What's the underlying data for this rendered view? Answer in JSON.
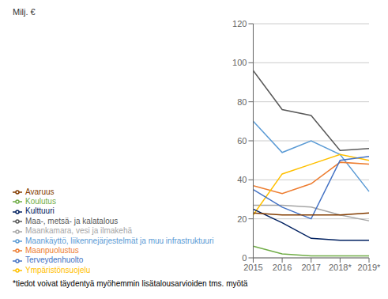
{
  "chart_data": {
    "type": "line",
    "categories": [
      "2015",
      "2016",
      "2017",
      "2018*",
      "2019*"
    ],
    "series": [
      {
        "name": "Maankäyttö, liikennejärjestelmät ja muu infrastruktuuri",
        "color": "#5B9BD5",
        "values": [
          70,
          54,
          60,
          53,
          34
        ]
      },
      {
        "name": "Maanpuolustus",
        "color": "#ED7D31",
        "values": [
          37,
          33,
          38,
          49,
          48
        ]
      },
      {
        "name": "Maankamara, vesi ja ilmakehä",
        "color": "#A5A5A5",
        "values": [
          27,
          27,
          26,
          22,
          19
        ]
      },
      {
        "name": "Ympäristönsuojelu",
        "color": "#FFC000",
        "values": [
          22,
          43,
          48,
          53,
          50
        ]
      },
      {
        "name": "Terveydenhuolto",
        "color": "#4472C4",
        "values": [
          35,
          26,
          20,
          50,
          52
        ]
      },
      {
        "name": "Koulutus",
        "color": "#70AD47",
        "values": [
          6,
          2,
          1,
          1,
          1
        ]
      },
      {
        "name": "Kulttuuri",
        "color": "#002060",
        "values": [
          25,
          18,
          10,
          9,
          9
        ]
      },
      {
        "name": "Avaruus",
        "color": "#833C00",
        "values": [
          23,
          22,
          22,
          22,
          23
        ]
      },
      {
        "name": "Maa-, metsä- ja kalatalous",
        "color": "#595959",
        "values": [
          96,
          76,
          73,
          55,
          56
        ]
      }
    ],
    "ylabel": "Milj. €",
    "ylim": [
      0,
      120
    ],
    "yticks": [
      0,
      20,
      40,
      60,
      80,
      100,
      120
    ],
    "grid": true,
    "legend": "bottom",
    "annotations": [
      "*tiedot voivat täydentyä myöhemmin lisätalousarvioiden tms. myötä"
    ]
  }
}
